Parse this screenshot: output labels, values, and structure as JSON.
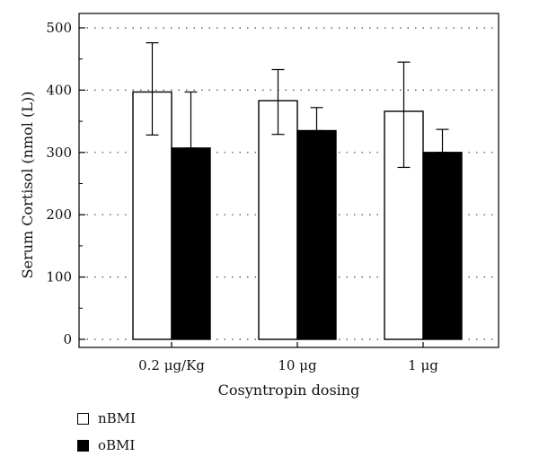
{
  "chart_data": {
    "type": "bar",
    "title": "",
    "xlabel": "Cosyntropin dosing",
    "ylabel": "Serum Cortisol (nmol (L))",
    "ylim": [
      0,
      500
    ],
    "yticks": [
      0,
      100,
      200,
      300,
      400,
      500
    ],
    "categories": [
      "0.2 μg/Kg",
      "10 μg",
      "1 μg"
    ],
    "grid": "dotted horizontal",
    "legend_position": "bottom-left",
    "series": [
      {
        "name": "nBMI",
        "color": "#ffffff",
        "values": [
          397,
          383,
          366
        ],
        "error_low": [
          328,
          329,
          276
        ],
        "error_high": [
          476,
          433,
          445
        ]
      },
      {
        "name": "oBMI",
        "color": "#000000",
        "values": [
          307,
          335,
          300
        ],
        "error_low": [
          307,
          335,
          300
        ],
        "error_high": [
          397,
          372,
          337
        ]
      }
    ]
  }
}
